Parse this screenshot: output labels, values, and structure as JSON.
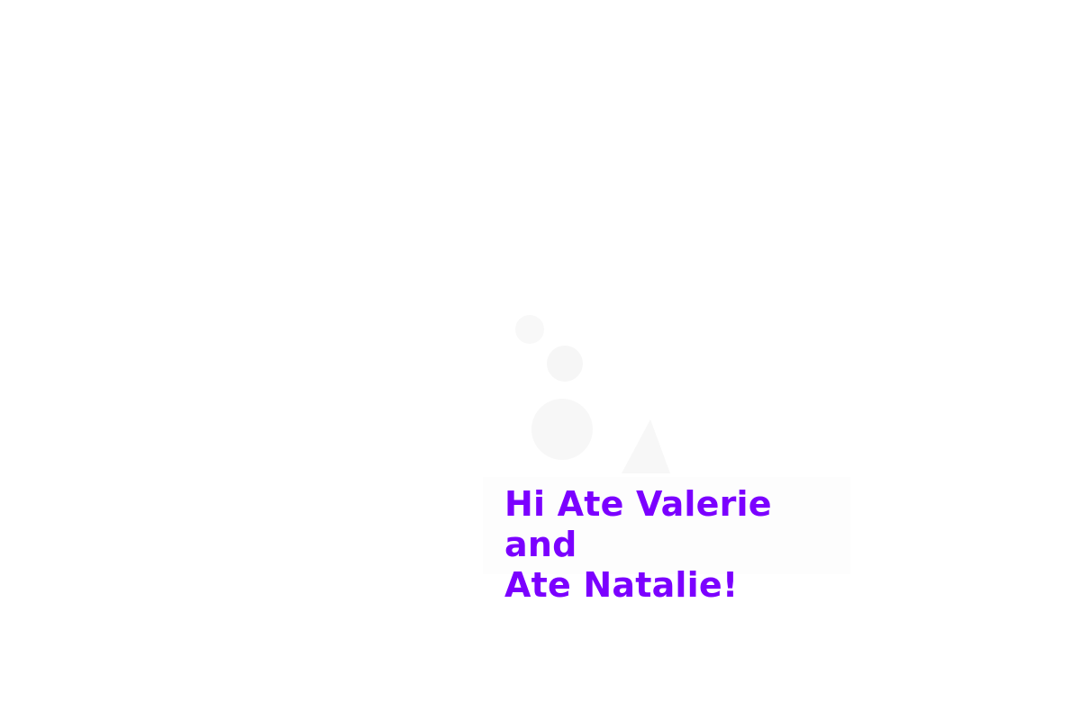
{
  "greeting": {
    "line1": "Hi Ate Valerie and",
    "line2": "Ate Natalie!"
  },
  "colors": {
    "greeting_text": "#7b00ff",
    "decor_shape": "#f7f7f7",
    "background": "#ffffff"
  }
}
